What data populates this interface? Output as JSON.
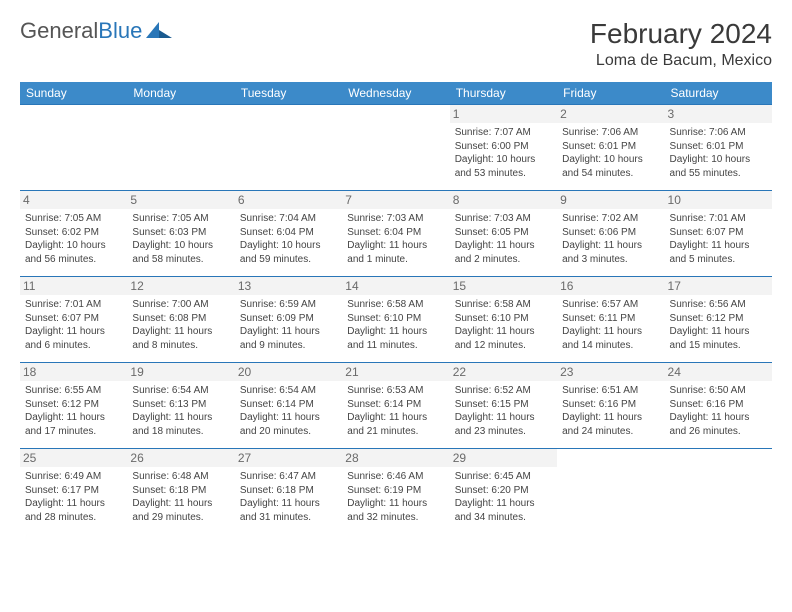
{
  "brand": {
    "text1": "General",
    "text2": "Blue"
  },
  "title": "February 2024",
  "location": "Loma de Bacum, Mexico",
  "colors": {
    "header_bg": "#3c8ac9",
    "header_text": "#ffffff",
    "border": "#2976b8",
    "daynum_bg": "#f3f3f3",
    "body_text": "#444444",
    "page_bg": "#ffffff"
  },
  "dayHeaders": [
    "Sunday",
    "Monday",
    "Tuesday",
    "Wednesday",
    "Thursday",
    "Friday",
    "Saturday"
  ],
  "weeks": [
    [
      null,
      null,
      null,
      null,
      {
        "n": "1",
        "sr": "Sunrise: 7:07 AM",
        "ss": "Sunset: 6:00 PM",
        "dl1": "Daylight: 10 hours",
        "dl2": "and 53 minutes."
      },
      {
        "n": "2",
        "sr": "Sunrise: 7:06 AM",
        "ss": "Sunset: 6:01 PM",
        "dl1": "Daylight: 10 hours",
        "dl2": "and 54 minutes."
      },
      {
        "n": "3",
        "sr": "Sunrise: 7:06 AM",
        "ss": "Sunset: 6:01 PM",
        "dl1": "Daylight: 10 hours",
        "dl2": "and 55 minutes."
      }
    ],
    [
      {
        "n": "4",
        "sr": "Sunrise: 7:05 AM",
        "ss": "Sunset: 6:02 PM",
        "dl1": "Daylight: 10 hours",
        "dl2": "and 56 minutes."
      },
      {
        "n": "5",
        "sr": "Sunrise: 7:05 AM",
        "ss": "Sunset: 6:03 PM",
        "dl1": "Daylight: 10 hours",
        "dl2": "and 58 minutes."
      },
      {
        "n": "6",
        "sr": "Sunrise: 7:04 AM",
        "ss": "Sunset: 6:04 PM",
        "dl1": "Daylight: 10 hours",
        "dl2": "and 59 minutes."
      },
      {
        "n": "7",
        "sr": "Sunrise: 7:03 AM",
        "ss": "Sunset: 6:04 PM",
        "dl1": "Daylight: 11 hours",
        "dl2": "and 1 minute."
      },
      {
        "n": "8",
        "sr": "Sunrise: 7:03 AM",
        "ss": "Sunset: 6:05 PM",
        "dl1": "Daylight: 11 hours",
        "dl2": "and 2 minutes."
      },
      {
        "n": "9",
        "sr": "Sunrise: 7:02 AM",
        "ss": "Sunset: 6:06 PM",
        "dl1": "Daylight: 11 hours",
        "dl2": "and 3 minutes."
      },
      {
        "n": "10",
        "sr": "Sunrise: 7:01 AM",
        "ss": "Sunset: 6:07 PM",
        "dl1": "Daylight: 11 hours",
        "dl2": "and 5 minutes."
      }
    ],
    [
      {
        "n": "11",
        "sr": "Sunrise: 7:01 AM",
        "ss": "Sunset: 6:07 PM",
        "dl1": "Daylight: 11 hours",
        "dl2": "and 6 minutes."
      },
      {
        "n": "12",
        "sr": "Sunrise: 7:00 AM",
        "ss": "Sunset: 6:08 PM",
        "dl1": "Daylight: 11 hours",
        "dl2": "and 8 minutes."
      },
      {
        "n": "13",
        "sr": "Sunrise: 6:59 AM",
        "ss": "Sunset: 6:09 PM",
        "dl1": "Daylight: 11 hours",
        "dl2": "and 9 minutes."
      },
      {
        "n": "14",
        "sr": "Sunrise: 6:58 AM",
        "ss": "Sunset: 6:10 PM",
        "dl1": "Daylight: 11 hours",
        "dl2": "and 11 minutes."
      },
      {
        "n": "15",
        "sr": "Sunrise: 6:58 AM",
        "ss": "Sunset: 6:10 PM",
        "dl1": "Daylight: 11 hours",
        "dl2": "and 12 minutes."
      },
      {
        "n": "16",
        "sr": "Sunrise: 6:57 AM",
        "ss": "Sunset: 6:11 PM",
        "dl1": "Daylight: 11 hours",
        "dl2": "and 14 minutes."
      },
      {
        "n": "17",
        "sr": "Sunrise: 6:56 AM",
        "ss": "Sunset: 6:12 PM",
        "dl1": "Daylight: 11 hours",
        "dl2": "and 15 minutes."
      }
    ],
    [
      {
        "n": "18",
        "sr": "Sunrise: 6:55 AM",
        "ss": "Sunset: 6:12 PM",
        "dl1": "Daylight: 11 hours",
        "dl2": "and 17 minutes."
      },
      {
        "n": "19",
        "sr": "Sunrise: 6:54 AM",
        "ss": "Sunset: 6:13 PM",
        "dl1": "Daylight: 11 hours",
        "dl2": "and 18 minutes."
      },
      {
        "n": "20",
        "sr": "Sunrise: 6:54 AM",
        "ss": "Sunset: 6:14 PM",
        "dl1": "Daylight: 11 hours",
        "dl2": "and 20 minutes."
      },
      {
        "n": "21",
        "sr": "Sunrise: 6:53 AM",
        "ss": "Sunset: 6:14 PM",
        "dl1": "Daylight: 11 hours",
        "dl2": "and 21 minutes."
      },
      {
        "n": "22",
        "sr": "Sunrise: 6:52 AM",
        "ss": "Sunset: 6:15 PM",
        "dl1": "Daylight: 11 hours",
        "dl2": "and 23 minutes."
      },
      {
        "n": "23",
        "sr": "Sunrise: 6:51 AM",
        "ss": "Sunset: 6:16 PM",
        "dl1": "Daylight: 11 hours",
        "dl2": "and 24 minutes."
      },
      {
        "n": "24",
        "sr": "Sunrise: 6:50 AM",
        "ss": "Sunset: 6:16 PM",
        "dl1": "Daylight: 11 hours",
        "dl2": "and 26 minutes."
      }
    ],
    [
      {
        "n": "25",
        "sr": "Sunrise: 6:49 AM",
        "ss": "Sunset: 6:17 PM",
        "dl1": "Daylight: 11 hours",
        "dl2": "and 28 minutes."
      },
      {
        "n": "26",
        "sr": "Sunrise: 6:48 AM",
        "ss": "Sunset: 6:18 PM",
        "dl1": "Daylight: 11 hours",
        "dl2": "and 29 minutes."
      },
      {
        "n": "27",
        "sr": "Sunrise: 6:47 AM",
        "ss": "Sunset: 6:18 PM",
        "dl1": "Daylight: 11 hours",
        "dl2": "and 31 minutes."
      },
      {
        "n": "28",
        "sr": "Sunrise: 6:46 AM",
        "ss": "Sunset: 6:19 PM",
        "dl1": "Daylight: 11 hours",
        "dl2": "and 32 minutes."
      },
      {
        "n": "29",
        "sr": "Sunrise: 6:45 AM",
        "ss": "Sunset: 6:20 PM",
        "dl1": "Daylight: 11 hours",
        "dl2": "and 34 minutes."
      },
      null,
      null
    ]
  ]
}
